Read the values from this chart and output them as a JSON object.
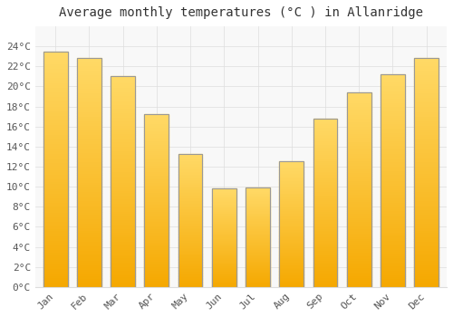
{
  "title": "Average monthly temperatures (°C ) in Allanridge",
  "months": [
    "Jan",
    "Feb",
    "Mar",
    "Apr",
    "May",
    "Jun",
    "Jul",
    "Aug",
    "Sep",
    "Oct",
    "Nov",
    "Dec"
  ],
  "values": [
    23.5,
    22.8,
    21.0,
    17.2,
    13.3,
    9.8,
    9.9,
    12.5,
    16.8,
    19.4,
    21.2,
    22.8
  ],
  "bar_color_bottom": "#F5A800",
  "bar_color_top": "#FFD966",
  "bar_edge_color": "#999999",
  "background_color": "#FFFFFF",
  "plot_bg_color": "#F8F8F8",
  "grid_color": "#DDDDDD",
  "text_color": "#555555",
  "title_color": "#333333",
  "ylim": [
    0,
    26
  ],
  "yticks": [
    0,
    2,
    4,
    6,
    8,
    10,
    12,
    14,
    16,
    18,
    20,
    22,
    24
  ],
  "title_fontsize": 10,
  "tick_fontsize": 8,
  "bar_width": 0.72
}
